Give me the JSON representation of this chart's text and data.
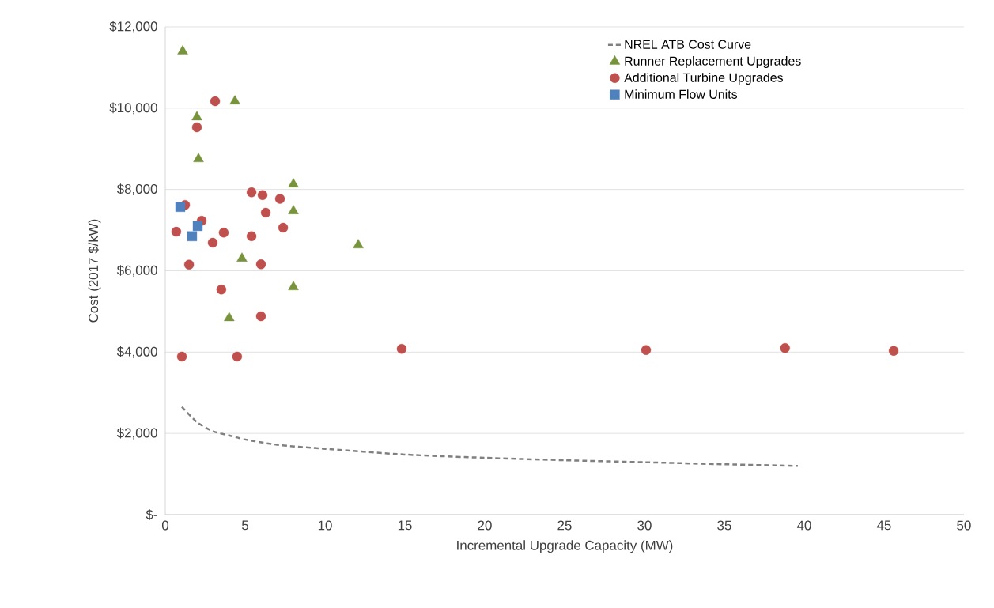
{
  "chart_data": {
    "type": "scatter",
    "xlabel": "Incremental Upgrade Capacity (MW)",
    "ylabel": "Cost (2017 $/kW)",
    "xlim": [
      0,
      50
    ],
    "xticks": [
      0,
      5,
      10,
      15,
      20,
      25,
      30,
      35,
      40,
      45,
      50
    ],
    "ylim": [
      0,
      12000
    ],
    "yticks": [
      {
        "value": 0,
        "label": "$-"
      },
      {
        "value": 2000,
        "label": "$2,000"
      },
      {
        "value": 4000,
        "label": "$4,000"
      },
      {
        "value": 6000,
        "label": "$6,000"
      },
      {
        "value": 8000,
        "label": "$8,000"
      },
      {
        "value": 10000,
        "label": "$10,000"
      },
      {
        "value": 12000,
        "label": "$12,000"
      }
    ],
    "grid": "y",
    "legend": "top right",
    "series": [
      {
        "name": "NREL ATB Cost Curve",
        "type": "line",
        "marker": "none",
        "line_style": "dashed",
        "color": "#808080",
        "x": [
          1.04,
          2,
          3,
          4,
          5,
          7,
          10,
          15,
          20,
          25,
          30,
          35,
          39.6
        ],
        "values": [
          2650,
          2270,
          2050,
          1950,
          1850,
          1720,
          1620,
          1480,
          1400,
          1340,
          1290,
          1240,
          1200
        ]
      },
      {
        "name": "Runner Replacement Upgrades",
        "marker": "triangle",
        "color": "#77933c",
        "x": [
          1.09,
          4.36,
          1.98,
          2.08,
          8.02,
          8.02,
          12.08,
          4.8,
          8.02,
          4.0
        ],
        "values": [
          11400,
          10170,
          9780,
          8750,
          8130,
          7470,
          6630,
          6300,
          5600,
          4840
        ]
      },
      {
        "name": "Additional Turbine Upgrades",
        "marker": "circle",
        "color": "#c0504d",
        "x": [
          3.12,
          1.98,
          1.24,
          2.28,
          0.69,
          1.49,
          2.97,
          3.66,
          5.4,
          6.09,
          7.18,
          6.29,
          7.38,
          5.4,
          5.99,
          3.51,
          5.99,
          1.04,
          4.5,
          14.8,
          30.1,
          38.8,
          45.6
        ],
        "values": [
          10170,
          9530,
          7620,
          7230,
          6960,
          6150,
          6690,
          6940,
          7930,
          7860,
          7770,
          7430,
          7060,
          6850,
          6160,
          5540,
          4880,
          3890,
          3890,
          4080,
          4050,
          4100,
          4030
        ]
      },
      {
        "name": "Minimum Flow Units",
        "marker": "square",
        "color": "#4f81bd",
        "x": [
          0.94,
          2.03,
          1.68
        ],
        "values": [
          7570,
          7100,
          6850
        ]
      }
    ]
  }
}
